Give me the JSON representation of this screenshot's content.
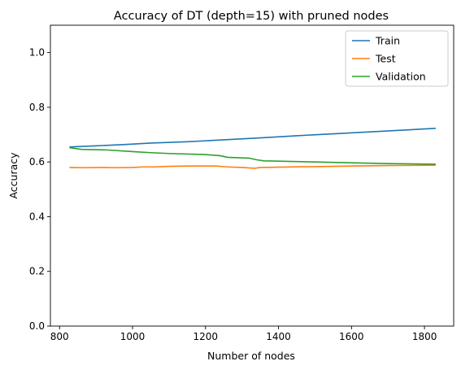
{
  "chart_data": {
    "type": "line",
    "title": "Accuracy of DT (depth=15) with pruned nodes",
    "xlabel": "Number of nodes",
    "ylabel": "Accuracy",
    "xlim": [
      775,
      1880
    ],
    "ylim": [
      0.0,
      1.1
    ],
    "xticks": [
      800,
      1000,
      1200,
      1400,
      1600,
      1800
    ],
    "yticks": [
      0.0,
      0.2,
      0.4,
      0.6,
      0.8,
      1.0
    ],
    "xtick_labels": [
      "800",
      "1000",
      "1200",
      "1400",
      "1600",
      "1800"
    ],
    "ytick_labels": [
      "0.0",
      "0.2",
      "0.4",
      "0.6",
      "0.8",
      "1.0"
    ],
    "grid": false,
    "legend_position": "top-right",
    "series": [
      {
        "name": "Train",
        "color": "#1f77b4",
        "x": [
          829,
          900,
          980,
          1050,
          1150,
          1250,
          1350,
          1450,
          1550,
          1650,
          1750,
          1829
        ],
        "y": [
          0.655,
          0.659,
          0.664,
          0.669,
          0.674,
          0.681,
          0.688,
          0.696,
          0.703,
          0.71,
          0.717,
          0.723
        ]
      },
      {
        "name": "Test",
        "color": "#ff7f0e",
        "x": [
          829,
          870,
          920,
          950,
          1000,
          1030,
          1060,
          1100,
          1150,
          1200,
          1230,
          1260,
          1300,
          1335,
          1350,
          1400,
          1500,
          1600,
          1700,
          1829
        ],
        "y": [
          0.58,
          0.579,
          0.58,
          0.579,
          0.58,
          0.582,
          0.582,
          0.584,
          0.585,
          0.585,
          0.585,
          0.582,
          0.58,
          0.577,
          0.58,
          0.581,
          0.583,
          0.585,
          0.587,
          0.588
        ]
      },
      {
        "name": "Validation",
        "color": "#2ca02c",
        "x": [
          829,
          860,
          930,
          1000,
          1050,
          1100,
          1200,
          1240,
          1260,
          1300,
          1320,
          1340,
          1360,
          1400,
          1500,
          1600,
          1700,
          1829
        ],
        "y": [
          0.652,
          0.646,
          0.644,
          0.638,
          0.634,
          0.631,
          0.627,
          0.623,
          0.617,
          0.615,
          0.614,
          0.608,
          0.604,
          0.603,
          0.6,
          0.597,
          0.594,
          0.592
        ]
      }
    ]
  }
}
